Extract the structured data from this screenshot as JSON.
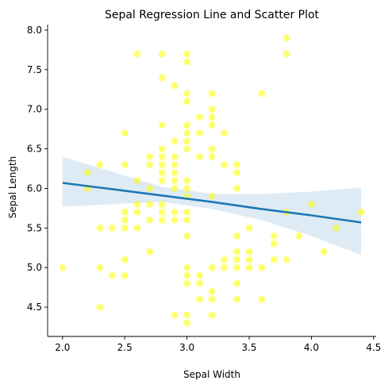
{
  "chart_data": {
    "type": "scatter",
    "title": "Sepal Regression Line and Scatter Plot",
    "xlabel": "Sepal Width",
    "ylabel": "Sepal Length",
    "xlim": [
      1.88,
      4.52
    ],
    "ylim": [
      4.13,
      8.07
    ],
    "xticks": [
      "2.0",
      "2.5",
      "3.0",
      "3.5",
      "4.0",
      "4.5"
    ],
    "yticks": [
      "4.5",
      "5.0",
      "5.5",
      "6.0",
      "6.5",
      "7.0",
      "7.5",
      "8.0"
    ],
    "grid": false,
    "point_color": "#ffff00",
    "line_color": "#1f77b4",
    "band_color": "#1f77b4",
    "points": [
      [
        2.0,
        5.0
      ],
      [
        2.2,
        6.2
      ],
      [
        2.2,
        6.0
      ],
      [
        2.3,
        6.3
      ],
      [
        2.3,
        5.5
      ],
      [
        2.3,
        5.0
      ],
      [
        2.3,
        4.5
      ],
      [
        2.4,
        5.5
      ],
      [
        2.4,
        4.9
      ],
      [
        2.5,
        6.7
      ],
      [
        2.5,
        6.3
      ],
      [
        2.5,
        5.7
      ],
      [
        2.5,
        5.6
      ],
      [
        2.5,
        5.5
      ],
      [
        2.5,
        5.1
      ],
      [
        2.5,
        4.9
      ],
      [
        2.6,
        7.7
      ],
      [
        2.6,
        6.1
      ],
      [
        2.6,
        5.8
      ],
      [
        2.6,
        5.7
      ],
      [
        2.6,
        5.5
      ],
      [
        2.7,
        6.4
      ],
      [
        2.7,
        6.3
      ],
      [
        2.7,
        6.0
      ],
      [
        2.7,
        5.8
      ],
      [
        2.7,
        5.6
      ],
      [
        2.7,
        5.2
      ],
      [
        2.8,
        7.7
      ],
      [
        2.8,
        7.4
      ],
      [
        2.8,
        6.8
      ],
      [
        2.8,
        6.5
      ],
      [
        2.8,
        6.4
      ],
      [
        2.8,
        6.3
      ],
      [
        2.8,
        6.2
      ],
      [
        2.8,
        6.1
      ],
      [
        2.8,
        5.8
      ],
      [
        2.8,
        5.7
      ],
      [
        2.8,
        5.6
      ],
      [
        2.9,
        7.3
      ],
      [
        2.9,
        6.6
      ],
      [
        2.9,
        6.4
      ],
      [
        2.9,
        6.3
      ],
      [
        2.9,
        6.2
      ],
      [
        2.9,
        6.1
      ],
      [
        2.9,
        6.0
      ],
      [
        2.9,
        5.7
      ],
      [
        2.9,
        5.6
      ],
      [
        2.9,
        4.4
      ],
      [
        3.0,
        7.7
      ],
      [
        3.0,
        7.6
      ],
      [
        3.0,
        7.2
      ],
      [
        3.0,
        7.1
      ],
      [
        3.0,
        6.8
      ],
      [
        3.0,
        6.7
      ],
      [
        3.0,
        6.6
      ],
      [
        3.0,
        6.5
      ],
      [
        3.0,
        6.1
      ],
      [
        3.0,
        6.0
      ],
      [
        3.0,
        5.9
      ],
      [
        3.0,
        5.7
      ],
      [
        3.0,
        5.6
      ],
      [
        3.0,
        5.4
      ],
      [
        3.0,
        5.0
      ],
      [
        3.0,
        4.9
      ],
      [
        3.0,
        4.8
      ],
      [
        3.0,
        4.4
      ],
      [
        3.0,
        4.3
      ],
      [
        3.1,
        6.9
      ],
      [
        3.1,
        6.7
      ],
      [
        3.1,
        6.4
      ],
      [
        3.1,
        4.9
      ],
      [
        3.1,
        4.8
      ],
      [
        3.1,
        4.6
      ],
      [
        3.2,
        7.2
      ],
      [
        3.2,
        7.0
      ],
      [
        3.2,
        6.9
      ],
      [
        3.2,
        6.8
      ],
      [
        3.2,
        6.5
      ],
      [
        3.2,
        6.4
      ],
      [
        3.2,
        5.9
      ],
      [
        3.2,
        5.0
      ],
      [
        3.2,
        4.7
      ],
      [
        3.2,
        4.6
      ],
      [
        3.2,
        4.4
      ],
      [
        3.3,
        6.7
      ],
      [
        3.3,
        6.3
      ],
      [
        3.3,
        5.1
      ],
      [
        3.3,
        5.0
      ],
      [
        3.4,
        6.3
      ],
      [
        3.4,
        6.2
      ],
      [
        3.4,
        6.0
      ],
      [
        3.4,
        5.4
      ],
      [
        3.4,
        5.2
      ],
      [
        3.4,
        5.1
      ],
      [
        3.4,
        5.0
      ],
      [
        3.4,
        4.8
      ],
      [
        3.4,
        4.6
      ],
      [
        3.5,
        5.5
      ],
      [
        3.5,
        5.2
      ],
      [
        3.5,
        5.1
      ],
      [
        3.5,
        5.0
      ],
      [
        3.6,
        7.2
      ],
      [
        3.6,
        5.0
      ],
      [
        3.6,
        4.6
      ],
      [
        3.7,
        5.4
      ],
      [
        3.7,
        5.3
      ],
      [
        3.7,
        5.1
      ],
      [
        3.8,
        7.9
      ],
      [
        3.8,
        7.7
      ],
      [
        3.8,
        5.7
      ],
      [
        3.8,
        5.1
      ],
      [
        3.9,
        5.4
      ],
      [
        4.0,
        5.8
      ],
      [
        4.1,
        5.2
      ],
      [
        4.2,
        5.5
      ],
      [
        4.4,
        5.7
      ]
    ],
    "regression": {
      "x": [
        2.0,
        2.4,
        2.8,
        3.2,
        3.6,
        4.0,
        4.4
      ],
      "y": [
        6.07,
        5.99,
        5.91,
        5.83,
        5.74,
        5.66,
        5.57
      ],
      "ci_lower": [
        5.77,
        5.8,
        5.83,
        5.74,
        5.6,
        5.4,
        5.16
      ],
      "ci_upper": [
        6.4,
        6.21,
        6.02,
        5.93,
        5.93,
        5.96,
        6.01
      ]
    }
  }
}
